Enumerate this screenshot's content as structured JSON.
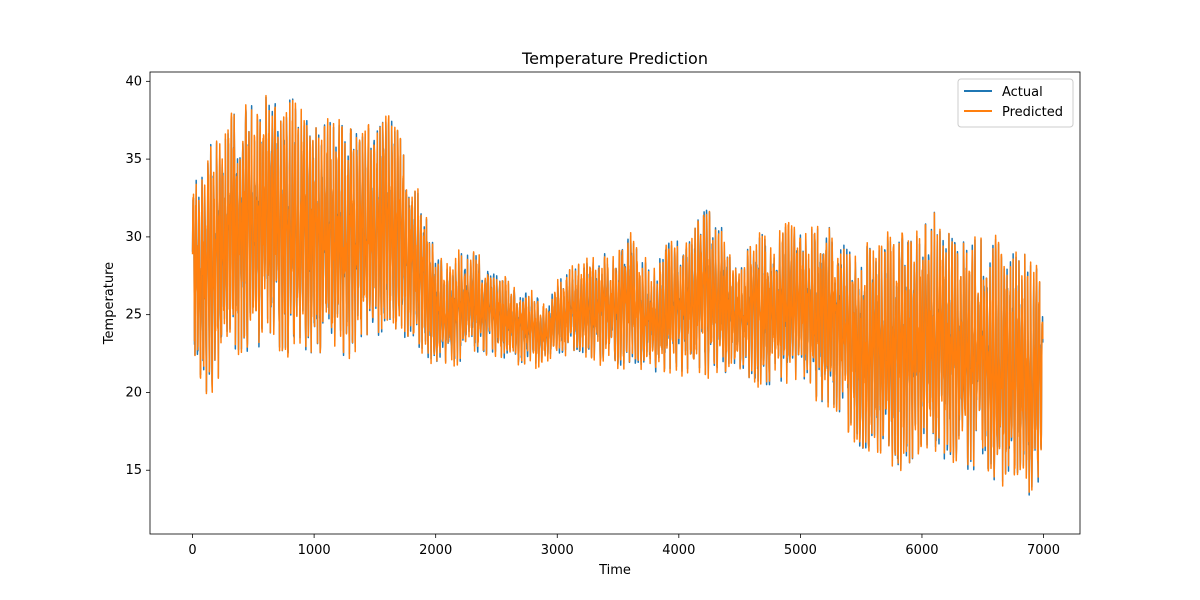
{
  "chart_data": {
    "type": "line",
    "title": "Temperature Prediction",
    "xlabel": "Time",
    "ylabel": "Temperature",
    "xlim": [
      -350,
      7300
    ],
    "ylim": [
      10.9,
      40.6
    ],
    "xticks": [
      0,
      1000,
      2000,
      3000,
      4000,
      5000,
      6000,
      7000
    ],
    "yticks": [
      15,
      20,
      25,
      30,
      35,
      40
    ],
    "grid": false,
    "legend_position": "top-right",
    "series": [
      {
        "name": "Actual",
        "color": "#1f77b4"
      },
      {
        "name": "Predicted",
        "color": "#ff7f0e"
      }
    ],
    "x_count": 6995,
    "envelope": {
      "x": [
        0,
        50,
        100,
        200,
        300,
        400,
        500,
        600,
        700,
        800,
        900,
        1000,
        1100,
        1200,
        1300,
        1400,
        1500,
        1600,
        1700,
        1800,
        1900,
        2000,
        2100,
        2200,
        2300,
        2400,
        2500,
        2600,
        2700,
        2800,
        2900,
        3000,
        3100,
        3200,
        3300,
        3400,
        3500,
        3600,
        3700,
        3800,
        3900,
        4000,
        4100,
        4200,
        4300,
        4400,
        4500,
        4600,
        4700,
        4800,
        4900,
        5000,
        5100,
        5200,
        5300,
        5400,
        5500,
        5600,
        5700,
        5800,
        5900,
        6000,
        6100,
        6200,
        6300,
        6400,
        6500,
        6600,
        6700,
        6800,
        6900,
        6990
      ],
      "upper": [
        33.5,
        34.0,
        35.5,
        37.0,
        37.8,
        38.0,
        38.5,
        39.2,
        38.8,
        39.3,
        38.0,
        37.5,
        37.6,
        37.4,
        37.0,
        36.8,
        37.2,
        38.2,
        36.6,
        33.5,
        32.2,
        29.0,
        28.0,
        29.0,
        29.3,
        28.0,
        27.5,
        27.3,
        26.3,
        26.5,
        25.5,
        27.0,
        28.0,
        28.4,
        28.5,
        29.0,
        28.9,
        30.4,
        28.5,
        28.0,
        29.5,
        30.0,
        30.2,
        31.8,
        31.8,
        29.8,
        28.0,
        29.8,
        30.2,
        30.0,
        30.8,
        30.3,
        30.5,
        30.9,
        30.1,
        29.0,
        29.4,
        29.5,
        30.0,
        30.1,
        29.8,
        30.5,
        31.6,
        30.4,
        29.5,
        29.9,
        29.8,
        29.9,
        28.8,
        29.2,
        28.5,
        27.5
      ],
      "lower": [
        23.5,
        19.6,
        20.0,
        20.5,
        22.5,
        22.8,
        22.5,
        22.5,
        22.8,
        22.5,
        22.5,
        22.5,
        22.6,
        22.3,
        22.5,
        23.0,
        23.5,
        23.8,
        24.0,
        23.0,
        22.4,
        22.0,
        22.0,
        22.0,
        22.3,
        22.5,
        22.4,
        22.0,
        21.9,
        21.8,
        22.0,
        22.5,
        22.7,
        22.5,
        22.1,
        22.0,
        21.8,
        21.6,
        21.8,
        21.3,
        21.5,
        21.3,
        21.5,
        21.2,
        21.0,
        21.2,
        21.5,
        20.8,
        20.5,
        20.5,
        20.8,
        21.2,
        19.8,
        19.3,
        19.0,
        17.5,
        16.4,
        16.5,
        16.0,
        14.5,
        15.5,
        16.6,
        16.0,
        15.5,
        16.0,
        14.8,
        15.7,
        14.3,
        14.0,
        14.8,
        12.3,
        14.5
      ]
    }
  }
}
